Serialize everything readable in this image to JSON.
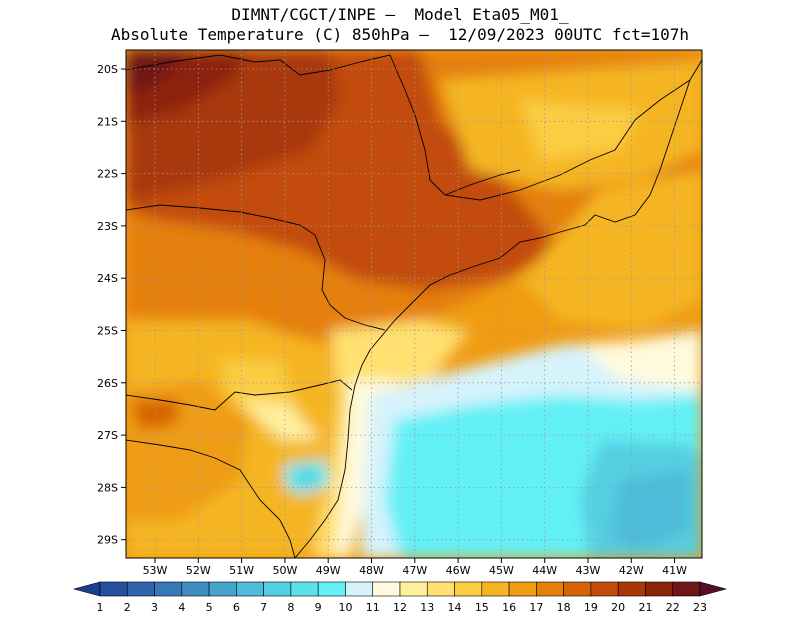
{
  "title": {
    "line1": "DIMNT/CGCT/INPE —  Model Eta05_M01_",
    "line2": "Absolute Temperature (C) 850hPa —  12/09/2023 00UTC fct=107h"
  },
  "map": {
    "lat_labels": [
      "20S",
      "21S",
      "22S",
      "23S",
      "24S",
      "25S",
      "26S",
      "27S",
      "28S",
      "29S"
    ],
    "lon_labels": [
      "53W",
      "52W",
      "51W",
      "50W",
      "49W",
      "48W",
      "47W",
      "46W",
      "45W",
      "44W",
      "43W",
      "42W",
      "41W"
    ],
    "grid": "dotted",
    "field": "temperature-shading",
    "coastline": "black"
  },
  "colorbar": {
    "labels": [
      "1",
      "2",
      "3",
      "4",
      "5",
      "6",
      "7",
      "8",
      "9",
      "10",
      "11",
      "12",
      "13",
      "14",
      "15",
      "16",
      "17",
      "18",
      "19",
      "20",
      "21",
      "22",
      "23"
    ],
    "colors": [
      "#1d3f8f",
      "#264f9c",
      "#2f64ab",
      "#3878b6",
      "#3f8dc1",
      "#46a5cd",
      "#4ebcd8",
      "#54cfe2",
      "#5be0ec",
      "#63f0f6",
      "#d6f3fc",
      "#fffadd",
      "#fff0a0",
      "#ffe070",
      "#fbcd42",
      "#f5b522",
      "#ef9c12",
      "#e57f0b",
      "#d66406",
      "#c24c08",
      "#a93708",
      "#8c2408",
      "#6e1618",
      "#5a0c2a"
    ]
  }
}
